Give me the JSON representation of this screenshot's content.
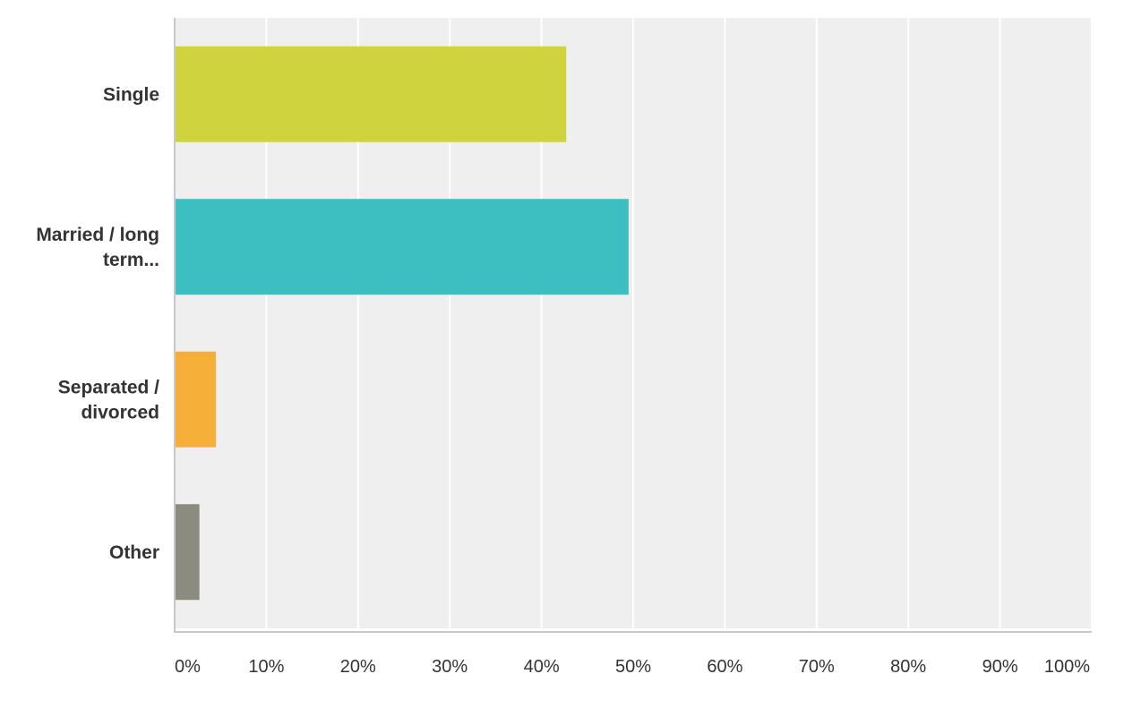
{
  "chart_data": {
    "type": "bar",
    "orientation": "horizontal",
    "categories": [
      [
        "Single"
      ],
      [
        "Married / long",
        "term..."
      ],
      [
        "Separated /",
        "divorced"
      ],
      [
        "Other"
      ]
    ],
    "values": [
      42.7,
      49.5,
      4.5,
      2.7
    ],
    "x_ticks": [
      "0%",
      "10%",
      "20%",
      "30%",
      "40%",
      "50%",
      "60%",
      "70%",
      "80%",
      "90%",
      "100%"
    ],
    "xlim": [
      0,
      100
    ],
    "grid": true,
    "legend": "none",
    "colors": {
      "bars": [
        "#cfd33e",
        "#3dbec0",
        "#f6af38",
        "#8b8b7f"
      ],
      "plot_background": "#efefef",
      "gridline": "#ffffff",
      "axis": "#c8c8c8",
      "text": "#333333"
    }
  }
}
